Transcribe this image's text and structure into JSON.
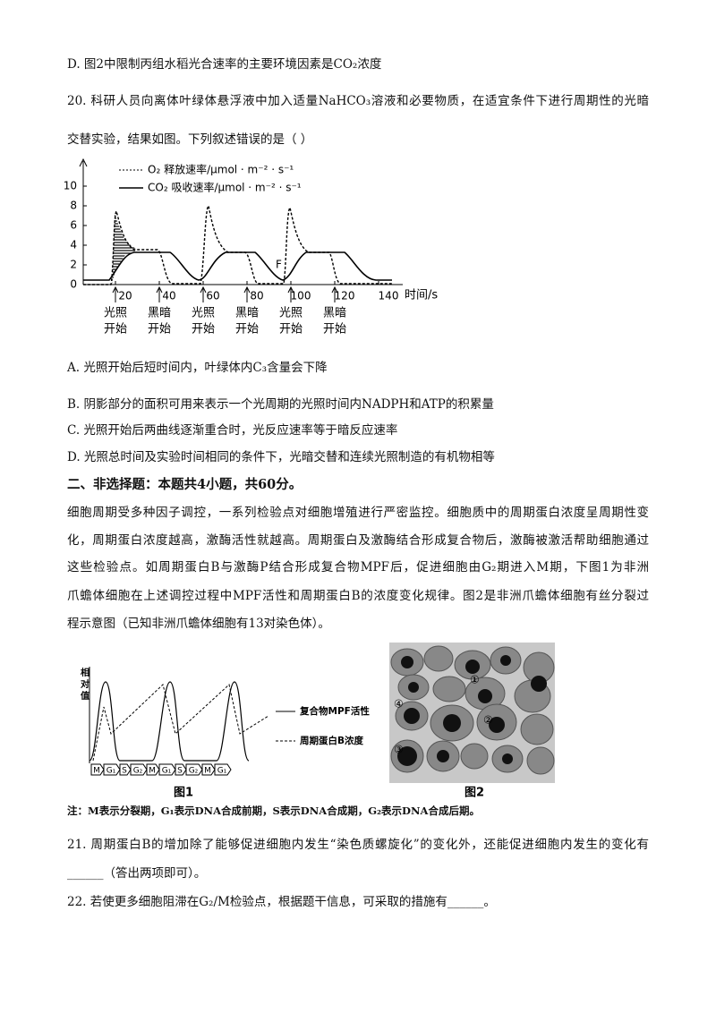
{
  "question19_option_d": "D. 图2中限制丙组水稻光合速率的主要环境因素是CO₂浓度",
  "question20": {
    "stem_lines": [
      "20. 科研人员向离体叶绿体悬浮液中加入适量NaHCO₃溶液和必要物质，在适宜条件下进行周期性的光暗",
      "交替实验，结果如图。下列叙述错误的是（      ）"
    ],
    "figure": {
      "legend": [
        "O₂ 释放速率/μmol · m⁻² · s⁻¹",
        "CO₂ 吸收速率/μmol · m⁻² · s⁻¹"
      ],
      "yticks": [
        "0",
        "2",
        "4",
        "6",
        "8",
        "10"
      ],
      "xticks": [
        "20",
        "40",
        "60",
        "80",
        "100",
        "120",
        "140"
      ],
      "x_label": "时间/s",
      "point_label": "F",
      "phase_labels": [
        [
          "光照",
          "开始"
        ],
        [
          "黑暗",
          "开始"
        ],
        [
          "光照",
          "开始"
        ],
        [
          "黑暗",
          "开始"
        ],
        [
          "光照",
          "开始"
        ],
        [
          "黑暗",
          "开始"
        ]
      ]
    },
    "options": [
      "A. 光照开始后短时间内，叶绿体内C₃含量会下降",
      "B. 阴影部分的面积可用来表示一个光周期的光照时间内NADPH和ATP的积累量",
      "C. 光照开始后两曲线逐渐重合时，光反应速率等于暗反应速率",
      "D. 光照总时间及实验时间相同的条件下，光暗交替和连续光照制造的有机物相等"
    ]
  },
  "section_heading": "二、非选择题：本题共4小题，共60分。",
  "passage_lines": [
    "细胞周期受多种因子调控，一系列检验点对细胞增殖进行严密监控。细胞质中的周期蛋白浓度呈周期性变",
    "化，周期蛋白浓度越高，激酶活性就越高。周期蛋白及激酶结合形成复合物后，激酶被激活帮助细胞通过",
    "这些检验点。如周期蛋白B与激酶P结合形成复合物MPF后，促进细胞由G₂期进入M期，下图1为非洲",
    "爪蟾体细胞在上述调控过程中MPF活性和周期蛋白B的浓度变化规律。图2是非洲爪蟾体细胞有丝分裂过",
    "程示意图（已知非洲爪蟾体细胞有13对染色体）。"
  ],
  "figure1": {
    "y_label": [
      "相",
      "对",
      "值"
    ],
    "legend": [
      "复合物MPF活性",
      "周期蛋白B浓度"
    ],
    "phases": [
      "M",
      "G₁",
      "S",
      "G₂",
      "M",
      "G₁",
      "S",
      "G₂",
      "M",
      "G₁"
    ],
    "caption": "图1"
  },
  "figure2": {
    "labels": [
      "①",
      "②",
      "③",
      "④"
    ],
    "caption": "图2"
  },
  "note": "注：M表示分裂期，G₁表示DNA合成前期，S表示DNA合成期，G₂表示DNA合成后期。",
  "question21_lines": [
    "21. 周期蛋白B的增加除了能够促进细胞内发生“染色质螺旋化”的变化外，还能促进细胞内发生的变化有",
    "______（答出两项即可）。"
  ],
  "question22": "22. 若使更多细胞阻滞在G₂/M检验点，根据题干信息，可采取的措施有______。"
}
